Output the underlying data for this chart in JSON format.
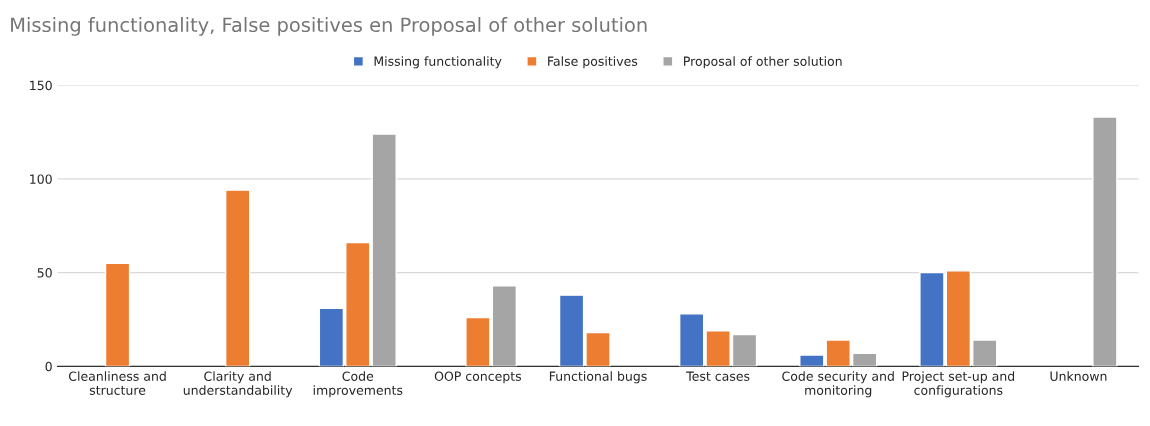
{
  "chart_data": {
    "type": "bar",
    "title": "Missing functionality, False positives en Proposal of other solution",
    "categories": [
      "Cleanliness and\nstructure",
      "Clarity and\nunderstandability",
      "Code\nimprovements",
      "OOP concepts",
      "Functional bugs",
      "Test cases",
      "Code security and\nmonitoring",
      "Project set-up and\nconfigurations",
      "Unknown"
    ],
    "series": [
      {
        "name": "Missing functionality",
        "color": "#4472c4",
        "values": [
          null,
          null,
          31,
          null,
          38,
          28,
          6,
          50,
          null
        ]
      },
      {
        "name": "False positives",
        "color": "#ed7d31",
        "values": [
          55,
          94,
          66,
          26,
          18,
          19,
          14,
          51,
          null
        ]
      },
      {
        "name": "Proposal of other solution",
        "color": "#a5a5a5",
        "values": [
          null,
          null,
          124,
          43,
          null,
          17,
          7,
          14,
          133
        ]
      }
    ],
    "ylim": [
      0,
      150
    ],
    "yticks": [
      0,
      50,
      100,
      150
    ],
    "grid": "y",
    "legend": "top"
  }
}
